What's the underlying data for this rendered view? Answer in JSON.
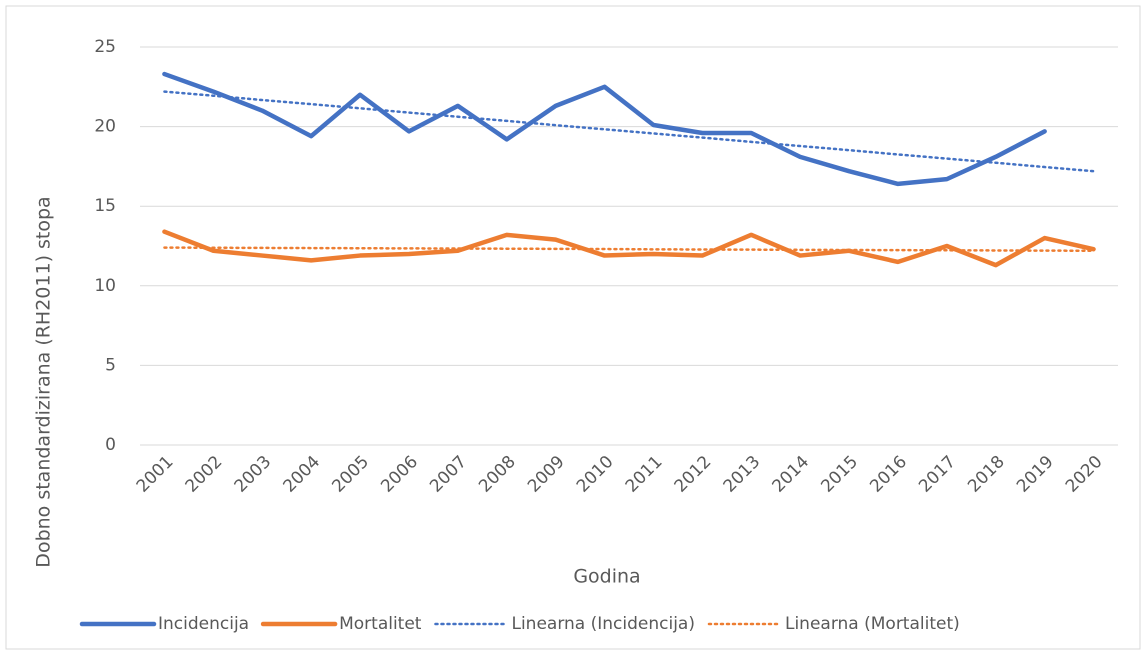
{
  "chart_data": {
    "type": "line",
    "categories": [
      "2001",
      "2002",
      "2003",
      "2004",
      "2005",
      "2006",
      "2007",
      "2008",
      "2009",
      "2010",
      "2011",
      "2012",
      "2013",
      "2014",
      "2015",
      "2016",
      "2017",
      "2018",
      "2019",
      "2020"
    ],
    "series": [
      {
        "name": "Incidencija",
        "color": "#4472c4",
        "dash": "solid",
        "values": [
          23.3,
          22.2,
          21.0,
          19.4,
          22.0,
          19.7,
          21.3,
          19.2,
          21.3,
          22.5,
          20.1,
          19.6,
          19.6,
          18.1,
          17.2,
          16.4,
          16.7,
          18.1,
          19.7,
          null
        ]
      },
      {
        "name": "Mortalitet",
        "color": "#ed7d31",
        "dash": "solid",
        "values": [
          13.4,
          12.2,
          11.9,
          11.6,
          11.9,
          12.0,
          12.2,
          13.2,
          12.9,
          11.9,
          12.0,
          11.9,
          13.2,
          11.9,
          12.2,
          11.5,
          12.5,
          11.3,
          13.0,
          12.3
        ]
      },
      {
        "name": "Linearna (Incidencija)",
        "color": "#4472c4",
        "dash": "dotted",
        "values": [
          22.2,
          21.94,
          21.67,
          21.41,
          21.15,
          20.88,
          20.62,
          20.36,
          20.09,
          19.83,
          19.57,
          19.31,
          19.04,
          18.78,
          18.52,
          18.25,
          17.99,
          17.73,
          17.46,
          17.2
        ]
      },
      {
        "name": "Linearna (Mortalitet)",
        "color": "#ed7d31",
        "dash": "dotted",
        "values": [
          12.4,
          12.39,
          12.38,
          12.37,
          12.36,
          12.35,
          12.34,
          12.33,
          12.32,
          12.31,
          12.29,
          12.28,
          12.27,
          12.26,
          12.25,
          12.24,
          12.23,
          12.22,
          12.21,
          12.2
        ]
      }
    ],
    "x_label": "Godina",
    "y_label": "Dobno standardizirana (RH2011) stopa",
    "ylim": [
      0,
      25
    ],
    "yticks": [
      0,
      5,
      10,
      15,
      20,
      25
    ],
    "grid": true,
    "legend": "bottom"
  }
}
